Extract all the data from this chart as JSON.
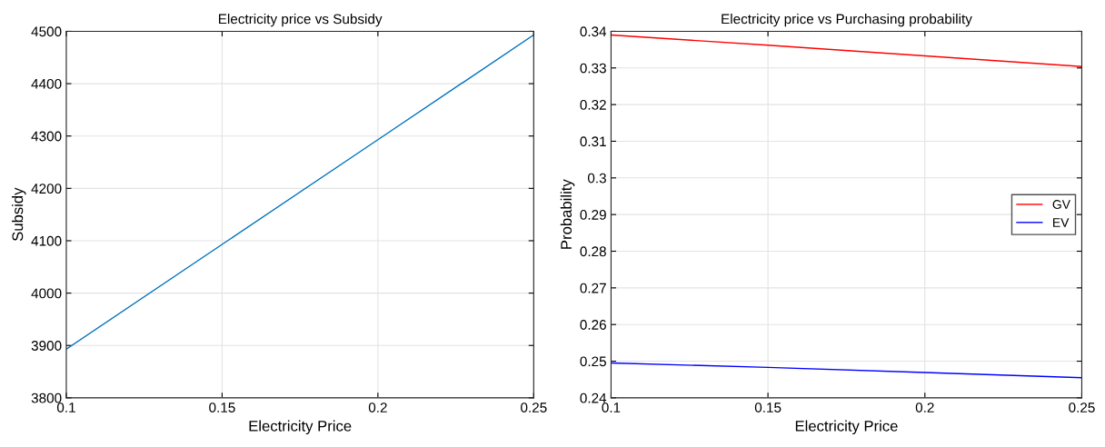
{
  "chart_data": [
    {
      "type": "line",
      "title": "Electricity price vs Subsidy",
      "xlabel": "Electricity Price",
      "ylabel": "Subsidy",
      "x": [
        0.1,
        0.15,
        0.2,
        0.25
      ],
      "series": [
        {
          "color": "#0072bd",
          "values": [
            3893,
            4093,
            4293,
            4493
          ]
        }
      ],
      "xlim": [
        0.1,
        0.25
      ],
      "xticks": [
        0.1,
        0.15,
        0.2,
        0.25
      ],
      "ylim": [
        3800,
        4500
      ],
      "yticks": [
        3800,
        3900,
        4000,
        4100,
        4200,
        4300,
        4400,
        4500
      ],
      "grid": true,
      "legend": false
    },
    {
      "type": "line",
      "title": "Electricity price vs Purchasing probability",
      "xlabel": "Electricity Price",
      "ylabel": "Probability",
      "x": [
        0.1,
        0.15,
        0.2,
        0.25
      ],
      "series": [
        {
          "name": "GV",
          "color": "#ff0000",
          "values": [
            0.339,
            0.3362,
            0.3333,
            0.3304
          ]
        },
        {
          "name": "EV",
          "color": "#0000ff",
          "values": [
            0.2495,
            0.2483,
            0.2469,
            0.2455
          ]
        }
      ],
      "xlim": [
        0.1,
        0.25
      ],
      "xticks": [
        0.1,
        0.15,
        0.2,
        0.25
      ],
      "ylim": [
        0.24,
        0.34
      ],
      "yticks": [
        0.24,
        0.25,
        0.26,
        0.27,
        0.28,
        0.29,
        0.3,
        0.31,
        0.32,
        0.33,
        0.34
      ],
      "grid": true,
      "legend": "center right"
    }
  ]
}
